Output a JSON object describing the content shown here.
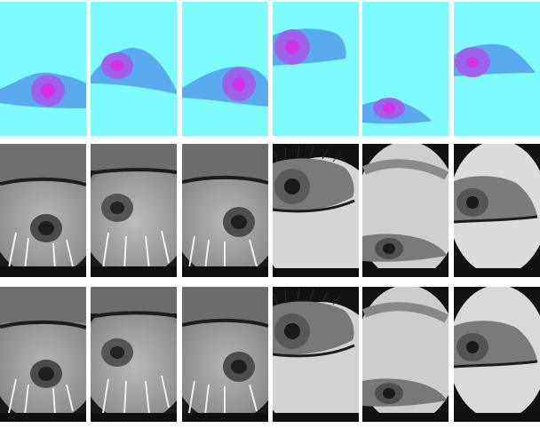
{
  "figure": {
    "rows": [
      {
        "kind": "segmentation-mask",
        "colors": {
          "background": "#7efcfd",
          "sclera": "#5aaaf0",
          "iris": "#9c63ea",
          "pupil": "#d62fe6"
        },
        "tiles": [
          {
            "view": "eye-low-center",
            "iris_cx": 0.52,
            "iris_cy": 0.64
          },
          {
            "view": "eye-upper-left",
            "iris_cx": 0.3,
            "iris_cy": 0.46
          },
          {
            "view": "eye-low-right",
            "iris_cx": 0.66,
            "iris_cy": 0.61
          },
          {
            "view": "eye-top-left",
            "iris_cx": 0.22,
            "iris_cy": 0.34
          },
          {
            "view": "eye-bottom-center",
            "iris_cx": 0.32,
            "iris_cy": 0.78
          },
          {
            "view": "eye-upper-left-small",
            "iris_cx": 0.22,
            "iris_cy": 0.45
          }
        ]
      },
      {
        "kind": "original-grayscale-photo",
        "tiles": 6
      },
      {
        "kind": "reconstructed-grayscale-photo",
        "tiles": 6
      }
    ]
  }
}
